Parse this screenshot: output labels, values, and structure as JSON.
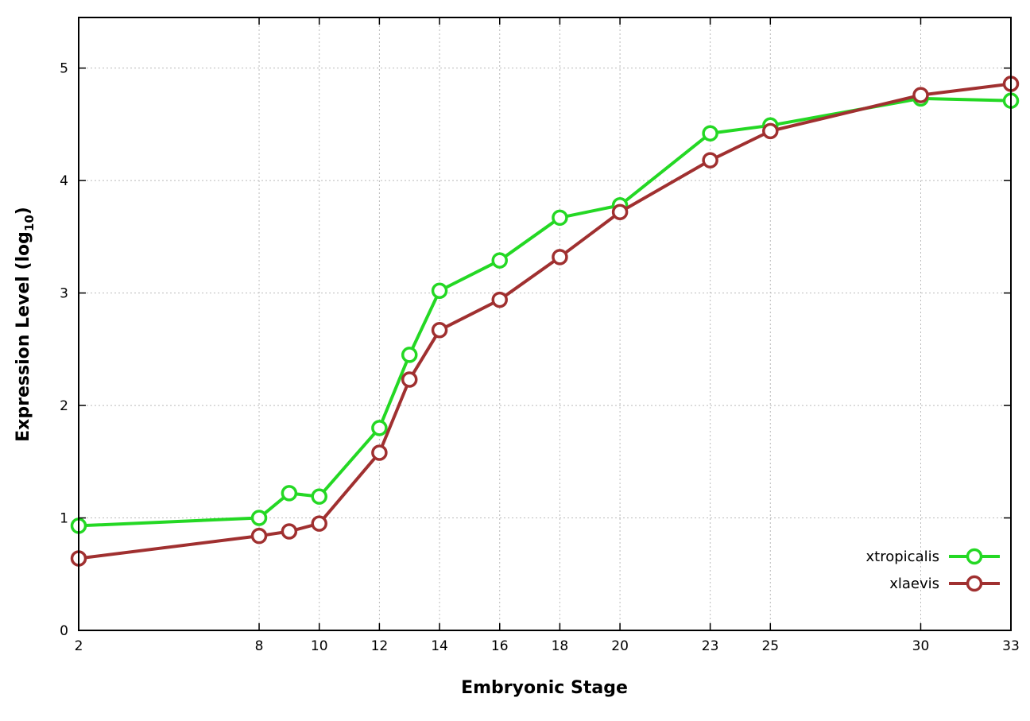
{
  "chart_data": {
    "type": "line",
    "title": "",
    "xlabel": "Embryonic Stage",
    "ylabel": "Expression Level (log10)",
    "ylabel_parts": {
      "prefix": "Expression Level (log",
      "sub": "10",
      "suffix": ")"
    },
    "x": [
      2,
      8,
      9,
      10,
      12,
      13,
      14,
      16,
      18,
      20,
      23,
      25,
      30,
      33
    ],
    "xticks": [
      2,
      8,
      10,
      12,
      14,
      16,
      18,
      20,
      23,
      25,
      30,
      33
    ],
    "yticks": [
      0,
      1,
      2,
      3,
      4,
      5
    ],
    "xlim": [
      2,
      33
    ],
    "ylim": [
      0,
      5.45
    ],
    "grid": true,
    "grid_style": "dotted",
    "grid_color": "#bbbbbb",
    "border_color": "#000000",
    "legend_position": "bottom-right",
    "marker": "open-circle",
    "series": [
      {
        "name": "xtropicalis",
        "color": "#24d824",
        "values": [
          0.93,
          1.0,
          1.22,
          1.19,
          1.8,
          2.45,
          3.02,
          3.29,
          3.67,
          3.78,
          4.42,
          4.49,
          4.73,
          4.71
        ]
      },
      {
        "name": "xlaevis",
        "color": "#a03030",
        "values": [
          0.64,
          0.84,
          0.88,
          0.95,
          1.58,
          2.23,
          2.67,
          2.94,
          3.32,
          3.72,
          4.18,
          4.44,
          4.76,
          4.86
        ]
      }
    ]
  }
}
